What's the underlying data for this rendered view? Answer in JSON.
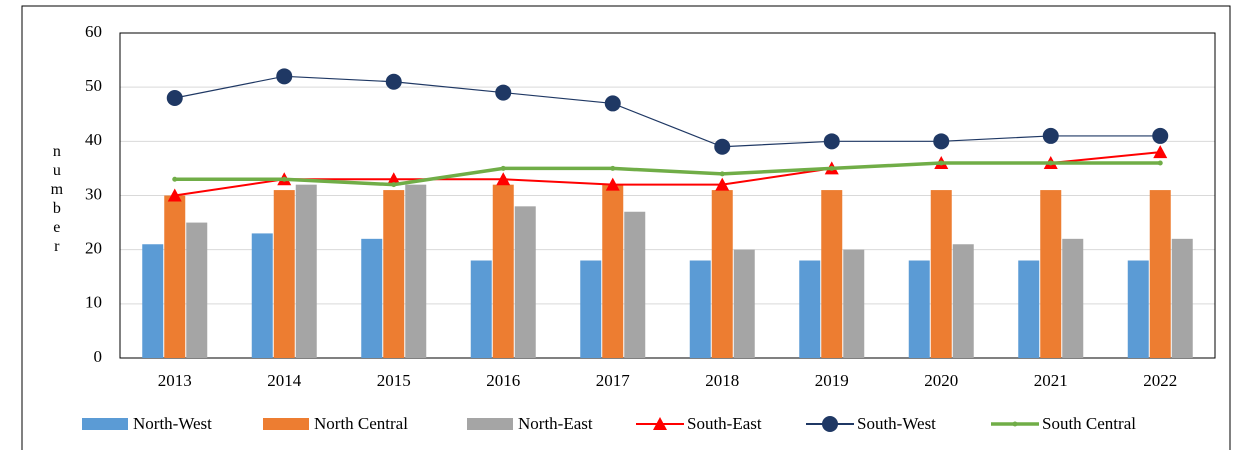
{
  "chart_data": {
    "type": "combo",
    "y_label": "number",
    "categories": [
      "2013",
      "2014",
      "2015",
      "2016",
      "2017",
      "2018",
      "2019",
      "2020",
      "2021",
      "2022"
    ],
    "series": [
      {
        "name": "North-West",
        "type": "bar",
        "color": "#5b9bd5",
        "values": [
          21,
          23,
          22,
          18,
          18,
          18,
          18,
          18,
          18,
          18
        ]
      },
      {
        "name": "North Central",
        "type": "bar",
        "color": "#ed7d31",
        "values": [
          30,
          31,
          31,
          32,
          32,
          31,
          31,
          31,
          31,
          31
        ]
      },
      {
        "name": "North-East",
        "type": "bar",
        "color": "#a5a5a5",
        "values": [
          25,
          32,
          32,
          28,
          27,
          20,
          20,
          21,
          22,
          22
        ]
      },
      {
        "name": "South-East",
        "type": "line",
        "marker": "triangle",
        "color": "#ff0000",
        "values": [
          30,
          33,
          33,
          33,
          32,
          32,
          35,
          36,
          36,
          38
        ]
      },
      {
        "name": "South-West",
        "type": "line",
        "marker": "circle",
        "color": "#1f3864",
        "values": [
          48,
          52,
          51,
          49,
          47,
          39,
          40,
          40,
          41,
          41
        ]
      },
      {
        "name": "South Central",
        "type": "line",
        "marker": "dot",
        "color": "#70ad47",
        "values": [
          33,
          33,
          32,
          35,
          35,
          34,
          35,
          36,
          36,
          36
        ]
      }
    ],
    "ylim": [
      0,
      60
    ],
    "yticks": [
      0,
      10,
      20,
      30,
      40,
      50,
      60
    ],
    "grid": true,
    "legend": "bottom"
  }
}
